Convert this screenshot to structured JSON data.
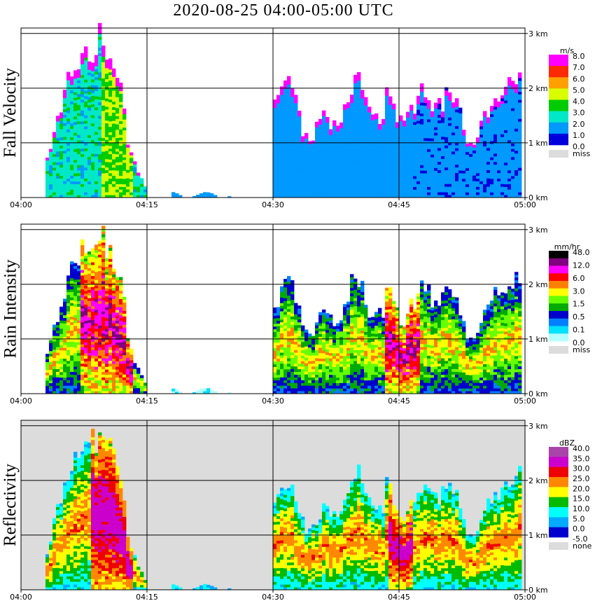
{
  "title": "2020-08-25   04:00-05:00 UTC",
  "chart_data": [
    {
      "type": "heatmap",
      "ylabel": "Fall Velocity",
      "x_ticks": [
        "04:00",
        "04:15",
        "04:30",
        "04:45",
        "05:00"
      ],
      "y_ticks": [
        "0 km",
        "1 km",
        "2 km",
        "3 km"
      ],
      "ylim_km": [
        0,
        3.1
      ],
      "background": "#ffffff",
      "colorbar": {
        "unit": "m/s",
        "levels": [
          "8.0",
          "7.0",
          "6.0",
          "5.0",
          "4.0",
          "3.0",
          "2.0",
          "1.0",
          "0.0",
          "miss"
        ],
        "colors": [
          "#ff00ff",
          "#ff2a00",
          "#ffa000",
          "#d8ff00",
          "#00cc00",
          "#00e8c8",
          "#0099ff",
          "#0000dd",
          "#dcdcdc"
        ]
      }
    },
    {
      "type": "heatmap",
      "ylabel": "Rain Intensity",
      "x_ticks": [
        "04:00",
        "04:15",
        "04:30",
        "04:45",
        "05:00"
      ],
      "y_ticks": [
        "0 km",
        "1 km",
        "2 km",
        "3 km"
      ],
      "ylim_km": [
        0,
        3.1
      ],
      "background": "#ffffff",
      "colorbar": {
        "unit": "mm/hr",
        "levels": [
          "48.0",
          "12.0",
          "6.0",
          "3.0",
          "1.5",
          "0.5",
          "0.1",
          "0.0",
          "miss"
        ],
        "colors": [
          "#000000",
          "#800080",
          "#ff00ff",
          "#ff0000",
          "#ff8000",
          "#ffff00",
          "#66ff00",
          "#00aa00",
          "#0000cc",
          "#0080ff",
          "#00e0ff",
          "#b4ffff",
          "#dcdcdc"
        ]
      }
    },
    {
      "type": "heatmap",
      "ylabel": "Reflectivity",
      "x_ticks": [
        "04:00",
        "04:15",
        "04:30",
        "04:45",
        "05:00"
      ],
      "y_ticks": [
        "0 km",
        "1 km",
        "2 km",
        "3 km"
      ],
      "ylim_km": [
        0,
        3.1
      ],
      "background": "#dcdcdc",
      "colorbar": {
        "unit": "dBZ",
        "levels": [
          "40.0",
          "35.0",
          "30.0",
          "25.0",
          "20.0",
          "15.0",
          "10.0",
          "5.0",
          "0.0",
          "-5.0",
          "none"
        ],
        "colors": [
          "#aa44aa",
          "#cc00cc",
          "#ee0000",
          "#ff8800",
          "#ffff00",
          "#00bb00",
          "#00ffff",
          "#00aaff",
          "#0000cc",
          "#dcdcdc"
        ]
      }
    }
  ]
}
